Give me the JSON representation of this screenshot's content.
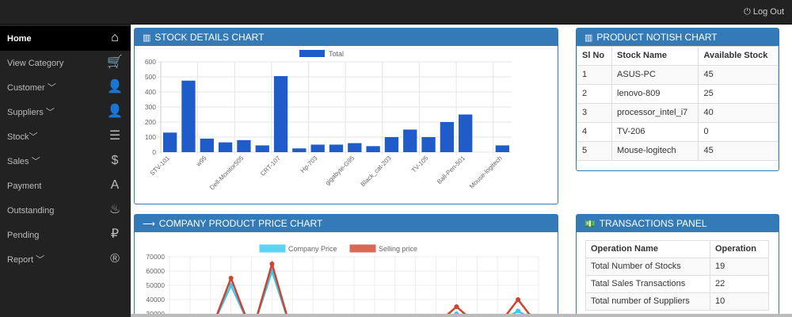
{
  "topbar": {
    "logout": "Log Out",
    "logout_icon": "power-icon"
  },
  "sidebar": {
    "items": [
      {
        "label": "Home",
        "icon": "home-icon",
        "glyph": "⌂",
        "active": true
      },
      {
        "label": "View Category",
        "icon": "cart-icon",
        "glyph": "🛒"
      },
      {
        "label": "Customer ﹀",
        "icon": "user-icon",
        "glyph": "👤"
      },
      {
        "label": "Suppliers ﹀",
        "icon": "user-icon",
        "glyph": "👤"
      },
      {
        "label": "Stock﹀",
        "icon": "list-icon",
        "glyph": "☰"
      },
      {
        "label": "Sales ﹀",
        "icon": "dollar-icon",
        "glyph": "$"
      },
      {
        "label": "Payment",
        "icon": "font-icon",
        "glyph": "A"
      },
      {
        "label": "Outstanding",
        "icon": "fire-icon",
        "glyph": "♨"
      },
      {
        "label": "Pending",
        "icon": "ruble-icon",
        "glyph": "₽"
      },
      {
        "label": "Report ﹀",
        "icon": "registered-icon",
        "glyph": "®"
      }
    ]
  },
  "stock_panel": {
    "title": "STOCK DETAILS CHART",
    "icon": "bar-chart-icon"
  },
  "notish_panel": {
    "title": "PRODUCT NOTISH CHART",
    "icon": "bar-chart-icon",
    "headers": [
      "Sl No",
      "Stock Name",
      "Available Stock"
    ],
    "rows": [
      [
        "1",
        "ASUS-PC",
        "45"
      ],
      [
        "2",
        "lenovo-809",
        "25"
      ],
      [
        "3",
        "processor_intel_i7",
        "40"
      ],
      [
        "4",
        "TV-206",
        "0"
      ],
      [
        "5",
        "Mouse-logitech",
        "45"
      ]
    ]
  },
  "price_panel": {
    "title": "COMPANY PRODUCT PRICE CHART",
    "icon": "arrow-right-icon"
  },
  "trans_panel": {
    "title": "TRANSACTIONS PANEL",
    "icon": "money-icon",
    "headers": [
      "Operation Name",
      "Operation"
    ],
    "rows": [
      [
        "Total Number of Stocks",
        "19"
      ],
      [
        "Tatal Sales Transactions",
        "22"
      ],
      [
        "Total number of Suppliers",
        "10"
      ]
    ]
  },
  "chart_data": [
    {
      "type": "bar",
      "legend": [
        "Total"
      ],
      "legend_placement": "top",
      "ylim": [
        0,
        600
      ],
      "yticks": [
        0,
        100,
        200,
        300,
        400,
        500,
        600
      ],
      "grid": true,
      "color": "#1f5bc9",
      "categories": [
        "STV-101",
        "",
        "w95",
        "",
        "Dell-Monitor505",
        "",
        "CRT-107",
        "",
        "Hp-703",
        "",
        "gigabyte-G95",
        "",
        "Black_cat-203",
        "",
        "TV-105",
        "",
        "Ball-Pen-501",
        "",
        "Mouse-logitech"
      ],
      "values": [
        130,
        475,
        90,
        65,
        80,
        45,
        505,
        25,
        50,
        50,
        60,
        40,
        100,
        150,
        100,
        200,
        250,
        0,
        45
      ]
    },
    {
      "type": "line",
      "legend_placement": "top",
      "grid": true,
      "yticks": [
        30000,
        40000,
        50000,
        60000,
        70000
      ],
      "series": [
        {
          "name": "Company Price",
          "color": "#36c9f5",
          "values": [
            null,
            null,
            null,
            50000,
            null,
            60000,
            null,
            null,
            null,
            null,
            null,
            null,
            null,
            null,
            30000,
            null,
            null,
            32000,
            null
          ]
        },
        {
          "name": "Selling price",
          "color": "#d0432e",
          "values": [
            null,
            null,
            null,
            55000,
            null,
            65000,
            null,
            null,
            null,
            null,
            null,
            null,
            null,
            null,
            35000,
            null,
            null,
            40000,
            null
          ]
        }
      ]
    }
  ]
}
